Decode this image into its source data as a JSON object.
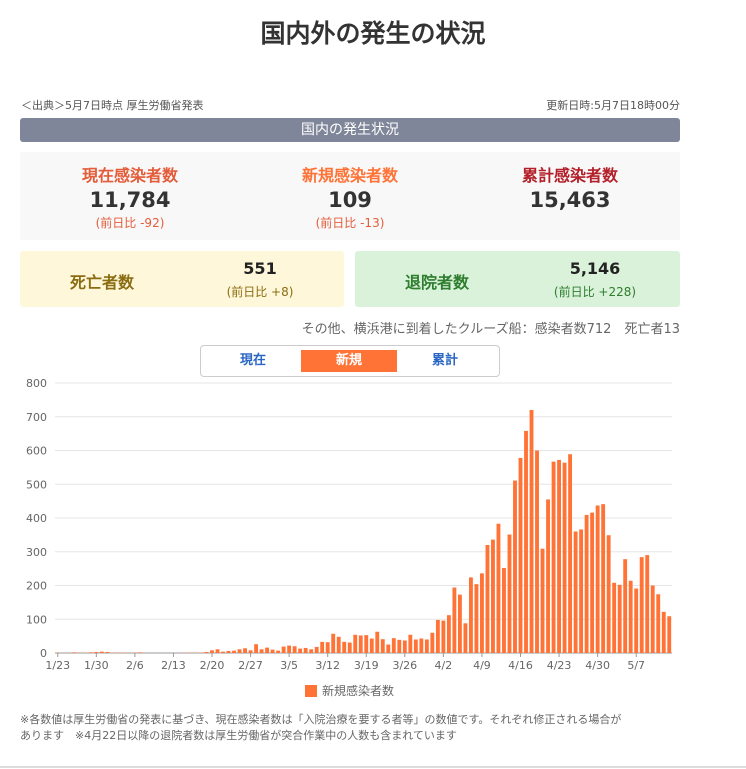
{
  "title": "国内外の発生の状況",
  "source": "＜出典＞5月7日時点 厚生労働省発表",
  "updated": "更新日時:5月7日18時00分",
  "section": "国内の発生状況",
  "stats": [
    {
      "label": "現在感染者数",
      "value": "11,784",
      "diff": "(前日比 -92)",
      "color": "#e45c3a"
    },
    {
      "label": "新規感染者数",
      "value": "109",
      "diff": "(前日比 -13)",
      "color": "#ff7337"
    },
    {
      "label": "累計感染者数",
      "value": "15,463",
      "diff": "",
      "color": "#b3202a"
    }
  ],
  "deaths": {
    "label": "死亡者数",
    "value": "551",
    "diff": "(前日比 +8)",
    "bg": "#fff7d9",
    "color": "#8a6d12"
  },
  "recovered": {
    "label": "退院者数",
    "value": "5,146",
    "diff": "(前日比 +228)",
    "bg": "#d9f2d9",
    "color": "#2f7d2f"
  },
  "cruise_note": "その他、横浜港に到着したクルーズ船：感染者数712　死亡者13",
  "tabs": [
    {
      "label": "現在",
      "active": false
    },
    {
      "label": "新規",
      "active": true
    },
    {
      "label": "累計",
      "active": false
    }
  ],
  "legend": "新規感染者数",
  "footnote_1": "※各数値は厚生労働省の発表に基づき、現在感染者数は「入院治療を要する者等」の数値です。それぞれ修正される場合が",
  "footnote_2": "あります　※4月22日以降の退院者数は厚生労働省が突合作業中の人数も含まれています",
  "chart_data": {
    "type": "bar",
    "series_name": "新規感染者数",
    "start_label": "1/23",
    "x_ticks": [
      "1/23",
      "1/30",
      "2/6",
      "2/13",
      "2/20",
      "2/27",
      "3/5",
      "3/12",
      "3/19",
      "3/26",
      "4/2",
      "4/9",
      "4/16",
      "4/23",
      "4/30",
      "5/7"
    ],
    "y_ticks": [
      0,
      100,
      200,
      300,
      400,
      500,
      600,
      700,
      800
    ],
    "ylim": [
      0,
      800
    ],
    "values": [
      1,
      0,
      0,
      2,
      1,
      0,
      2,
      3,
      4,
      3,
      1,
      1,
      1,
      0,
      1,
      2,
      0,
      0,
      0,
      0,
      0,
      0,
      0,
      1,
      1,
      1,
      1,
      3,
      8,
      11,
      4,
      6,
      7,
      11,
      14,
      8,
      26,
      11,
      16,
      10,
      7,
      19,
      22,
      20,
      13,
      15,
      11,
      18,
      33,
      32,
      57,
      48,
      33,
      31,
      54,
      52,
      53,
      43,
      63,
      41,
      25,
      44,
      39,
      37,
      54,
      40,
      43,
      40,
      60,
      98,
      96,
      112,
      194,
      173,
      88,
      224,
      204,
      236,
      320,
      336,
      383,
      252,
      351,
      511,
      578,
      658,
      720,
      600,
      309,
      455,
      567,
      572,
      564,
      589,
      360,
      366,
      409,
      416,
      437,
      441,
      349,
      208,
      202,
      278,
      214,
      191,
      284,
      290,
      200,
      174,
      122,
      109
    ]
  }
}
